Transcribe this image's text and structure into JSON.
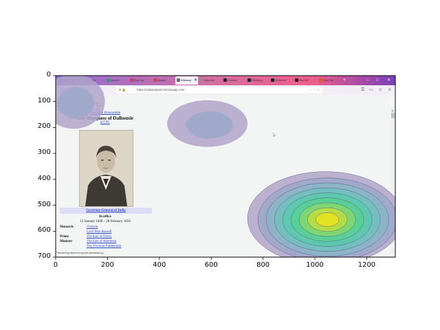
{
  "browser": {
    "tabs": [
      {
        "label": "Data",
        "icon_color": "#4a6bd1"
      },
      {
        "label": "Google",
        "icon_color": "#4a6bd1"
      },
      {
        "label": "Greenr",
        "icon_color": "#2aa05a"
      },
      {
        "label": "Buy Car",
        "icon_color": "#d24545"
      },
      {
        "label": "Marius",
        "icon_color": "#d24545"
      },
      {
        "label": "Wikianal",
        "icon_color": "#6e6e6e",
        "active": true
      },
      {
        "label": "New tab",
        "icon_color": "#8f8f8f"
      },
      {
        "label": "Futures",
        "icon_color": "#222222"
      },
      {
        "label": "Climbing",
        "icon_color": "#222222"
      },
      {
        "label": "FinStreet",
        "icon_color": "#222222"
      },
      {
        "label": "Buy NFI",
        "icon_color": "#222222"
      },
      {
        "label": "New Tab",
        "icon_color": "#e0572b"
      }
    ],
    "new_tab_label": "+",
    "window_controls": [
      "–",
      "□",
      "✕"
    ],
    "url": "https://wikianalysis.herokuapp.com",
    "nav": {
      "back": "←",
      "forward": "→",
      "stop": "✕",
      "home": "⌂"
    }
  },
  "page": {
    "start_label": "Start",
    "stop_label": "Stop",
    "query_value": "india",
    "go_label": "Go",
    "infobox": {
      "honorific_prefix": "The Most Honourable",
      "name": "The Marquess of Dalhousie",
      "honorific_suffix": "KT PC",
      "office": "Governor-General of India",
      "in_office_label": "In office",
      "term": "12 January 1848 – 28 February 1856",
      "rows": [
        {
          "label": "Monarch",
          "value": "Victoria"
        },
        {
          "label": "",
          "value": "Lord John Russell"
        },
        {
          "label": "Prime",
          "value": "The Earl of Derby"
        },
        {
          "label": "Minister",
          "value": "The Earl of Aberdeen"
        },
        {
          "label": "",
          "value": "The Viscount Palmerston"
        }
      ]
    },
    "status_text": "Transferring data from upload.wikimedia.org..."
  },
  "axes": {
    "x_ticks": [
      "0",
      "200",
      "400",
      "600",
      "800",
      "1000",
      "1200"
    ],
    "y_ticks": [
      "0",
      "100",
      "200",
      "300",
      "400",
      "500",
      "600",
      "700"
    ],
    "x_range": [
      0,
      1310
    ],
    "y_range": [
      0,
      700
    ]
  },
  "gaze_heatmap": {
    "hotspots": [
      {
        "cx": 1040,
        "cy": 550,
        "rx": 300,
        "ry": 180,
        "levels": 8
      },
      {
        "cx": 585,
        "cy": 185,
        "rx": 155,
        "ry": 90,
        "levels": 1
      },
      {
        "cx": 70,
        "cy": 100,
        "rx": 120,
        "ry": 105,
        "levels": 1
      }
    ],
    "colors": [
      "#b0a3c9",
      "#9fa9c9",
      "#8cb3c6",
      "#74bfbf",
      "#5cc8ad",
      "#58cf96",
      "#7fd66f",
      "#b6dc45",
      "#e6e21f"
    ]
  }
}
